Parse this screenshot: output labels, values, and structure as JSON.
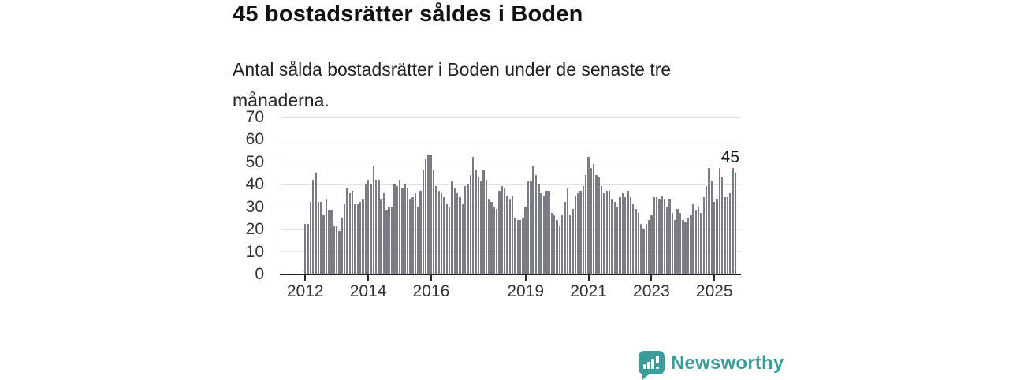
{
  "header": {
    "title": "45 bostadsrätter såldes i Boden",
    "subtitle": "Antal sålda bostadsrätter i Boden under de senaste tre månaderna."
  },
  "annotation": {
    "last_value_label": "45"
  },
  "footer": {
    "brand": "Newsworthy",
    "logo_icon": "bar-chart-speech-bubble-icon"
  },
  "colors": {
    "bar": "#7b7b83",
    "highlight": "#00a59a",
    "gridline": "#e3e3e6",
    "axis": "#222222",
    "axis_text": "#333333",
    "title_text": "#111111",
    "brand": "#3b9c9a"
  },
  "chart_data": {
    "type": "bar",
    "title": "45 bostadsrätter såldes i Boden",
    "xlabel": "",
    "ylabel": "",
    "x_unit": "month",
    "x_start": "2012-01",
    "x_end": "2025-09",
    "ylim": [
      0,
      70
    ],
    "y_ticks": [
      0,
      10,
      20,
      30,
      40,
      50,
      60,
      70
    ],
    "grid": "horizontal",
    "legend": "off",
    "x_axis_start_year": 2012,
    "x_ticks": [
      {
        "year": 2012,
        "label": "2012"
      },
      {
        "year": 2014,
        "label": "2014"
      },
      {
        "year": 2016,
        "label": "2016"
      },
      {
        "year": 2019,
        "label": "2019"
      },
      {
        "year": 2021,
        "label": "2021"
      },
      {
        "year": 2023,
        "label": "2023"
      },
      {
        "year": 2025,
        "label": "2025"
      }
    ],
    "series": [
      {
        "name": "Antal sålda bostadsrätter (rullande tre månader)",
        "values": [
          22,
          22,
          32,
          42,
          45,
          32,
          32,
          26,
          33,
          28,
          28,
          21,
          21,
          19,
          25,
          31,
          38,
          36,
          37,
          31,
          31,
          32,
          33,
          40,
          42,
          40,
          48,
          42,
          42,
          33,
          36,
          28,
          30,
          30,
          40,
          39,
          42,
          38,
          40,
          38,
          33,
          34,
          36,
          30,
          37,
          46,
          51,
          53,
          53,
          46,
          39,
          37,
          36,
          34,
          31,
          30,
          41,
          38,
          36,
          34,
          31,
          39,
          40,
          44,
          52,
          46,
          43,
          41,
          46,
          42,
          33,
          32,
          30,
          29,
          37,
          39,
          38,
          35,
          33,
          35,
          25,
          24,
          24,
          25,
          30,
          41,
          41,
          48,
          44,
          40,
          36,
          35,
          37,
          37,
          27,
          26,
          24,
          21,
          26,
          32,
          38,
          26,
          29,
          35,
          36,
          37,
          39,
          44,
          52,
          47,
          49,
          44,
          43,
          39,
          36,
          37,
          37,
          33,
          32,
          30,
          34,
          36,
          34,
          37,
          34,
          31,
          29,
          27,
          22,
          20,
          22,
          24,
          26,
          34,
          34,
          33,
          35,
          33,
          30,
          33,
          27,
          24,
          29,
          27,
          24,
          23,
          25,
          26,
          31,
          28,
          30,
          27,
          34,
          39,
          47,
          41,
          32,
          33,
          47,
          43,
          34,
          34,
          36,
          47,
          45
        ]
      }
    ],
    "highlight": {
      "index": 164,
      "value": 45,
      "label": "45",
      "color": "#00a59a"
    },
    "bar_color": "#7b7b83"
  }
}
